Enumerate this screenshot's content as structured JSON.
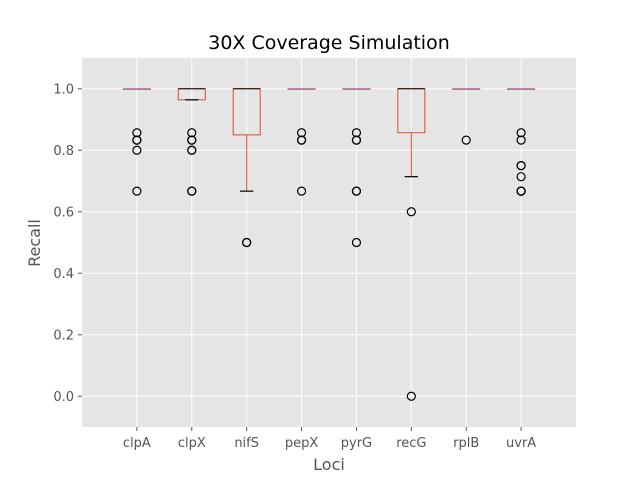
{
  "chart_data": {
    "type": "box",
    "title": "30X Coverage Simulation",
    "xlabel": "Loci",
    "ylabel": "Recall",
    "ylim": [
      -0.1,
      1.1
    ],
    "yticks": [
      0.0,
      0.2,
      0.4,
      0.6,
      0.8,
      1.0
    ],
    "ytick_labels": [
      "0.0",
      "0.2",
      "0.4",
      "0.6",
      "0.8",
      "1.0"
    ],
    "grid": true,
    "categories": [
      "clpA",
      "clpX",
      "nifS",
      "pepX",
      "pyrG",
      "recG",
      "rplB",
      "uvrA"
    ],
    "boxes": [
      {
        "q1": 1.0,
        "median": 1.0,
        "q3": 1.0,
        "whisker_low": 1.0,
        "whisker_high": 1.0,
        "outliers": [
          0.857,
          0.833,
          0.833,
          0.8,
          0.667
        ]
      },
      {
        "q1": 0.964,
        "median": 1.0,
        "q3": 1.0,
        "whisker_low": 0.964,
        "whisker_high": 1.0,
        "outliers": [
          0.857,
          0.833,
          0.833,
          0.8,
          0.8,
          0.667,
          0.667
        ]
      },
      {
        "q1": 0.85,
        "median": 1.0,
        "q3": 1.0,
        "whisker_low": 0.667,
        "whisker_high": 1.0,
        "outliers": [
          0.5,
          0.5
        ]
      },
      {
        "q1": 1.0,
        "median": 1.0,
        "q3": 1.0,
        "whisker_low": 1.0,
        "whisker_high": 1.0,
        "outliers": [
          0.857,
          0.833,
          0.833,
          0.667
        ]
      },
      {
        "q1": 1.0,
        "median": 1.0,
        "q3": 1.0,
        "whisker_low": 1.0,
        "whisker_high": 1.0,
        "outliers": [
          0.857,
          0.833,
          0.833,
          0.667,
          0.667,
          0.5
        ]
      },
      {
        "q1": 0.857,
        "median": 1.0,
        "q3": 1.0,
        "whisker_low": 0.714,
        "whisker_high": 1.0,
        "outliers": [
          0.6,
          0.0
        ]
      },
      {
        "q1": 1.0,
        "median": 1.0,
        "q3": 1.0,
        "whisker_low": 1.0,
        "whisker_high": 1.0,
        "outliers": [
          0.833
        ]
      },
      {
        "q1": 1.0,
        "median": 1.0,
        "q3": 1.0,
        "whisker_low": 1.0,
        "whisker_high": 1.0,
        "outliers": [
          0.857,
          0.833,
          0.75,
          0.75,
          0.714,
          0.667,
          0.667,
          0.667
        ]
      }
    ],
    "colors": {
      "plot_background": "#e5e5e5",
      "grid": "#ffffff",
      "box": "#e24a33",
      "median": "#000000",
      "median_flat": "#8c8cd9",
      "whisker": "#e24a33",
      "cap": "#000000",
      "outlier": "#000000"
    }
  }
}
